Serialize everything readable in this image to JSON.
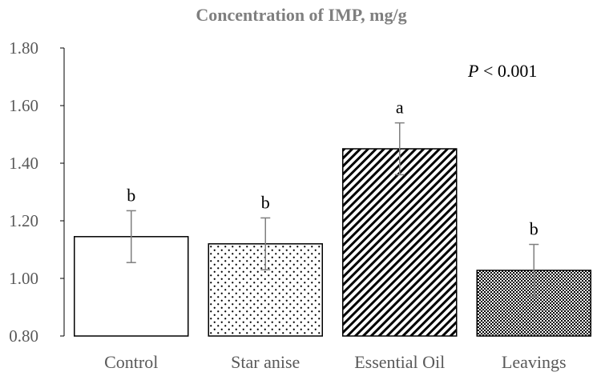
{
  "chart_data": {
    "type": "bar",
    "title": "Concentration of IMP, mg/g",
    "xlabel": "",
    "ylabel": "",
    "categories": [
      "Control",
      "Star anise",
      "Essential Oil",
      "Leavings"
    ],
    "values": [
      1.145,
      1.12,
      1.45,
      1.028
    ],
    "errors": [
      0.09,
      0.09,
      0.09,
      0.09
    ],
    "significance_letters": [
      "b",
      "b",
      "a",
      "b"
    ],
    "patterns": [
      "solid-white",
      "dots",
      "diagonal-lines",
      "checker"
    ],
    "ylim": [
      0.8,
      1.8
    ],
    "yticks": [
      "0.80",
      "1.00",
      "1.20",
      "1.40",
      "1.60",
      "1.80"
    ],
    "annotation": {
      "italic": "P",
      "rest": " < 0.001"
    },
    "grid": false,
    "legend": "none"
  }
}
